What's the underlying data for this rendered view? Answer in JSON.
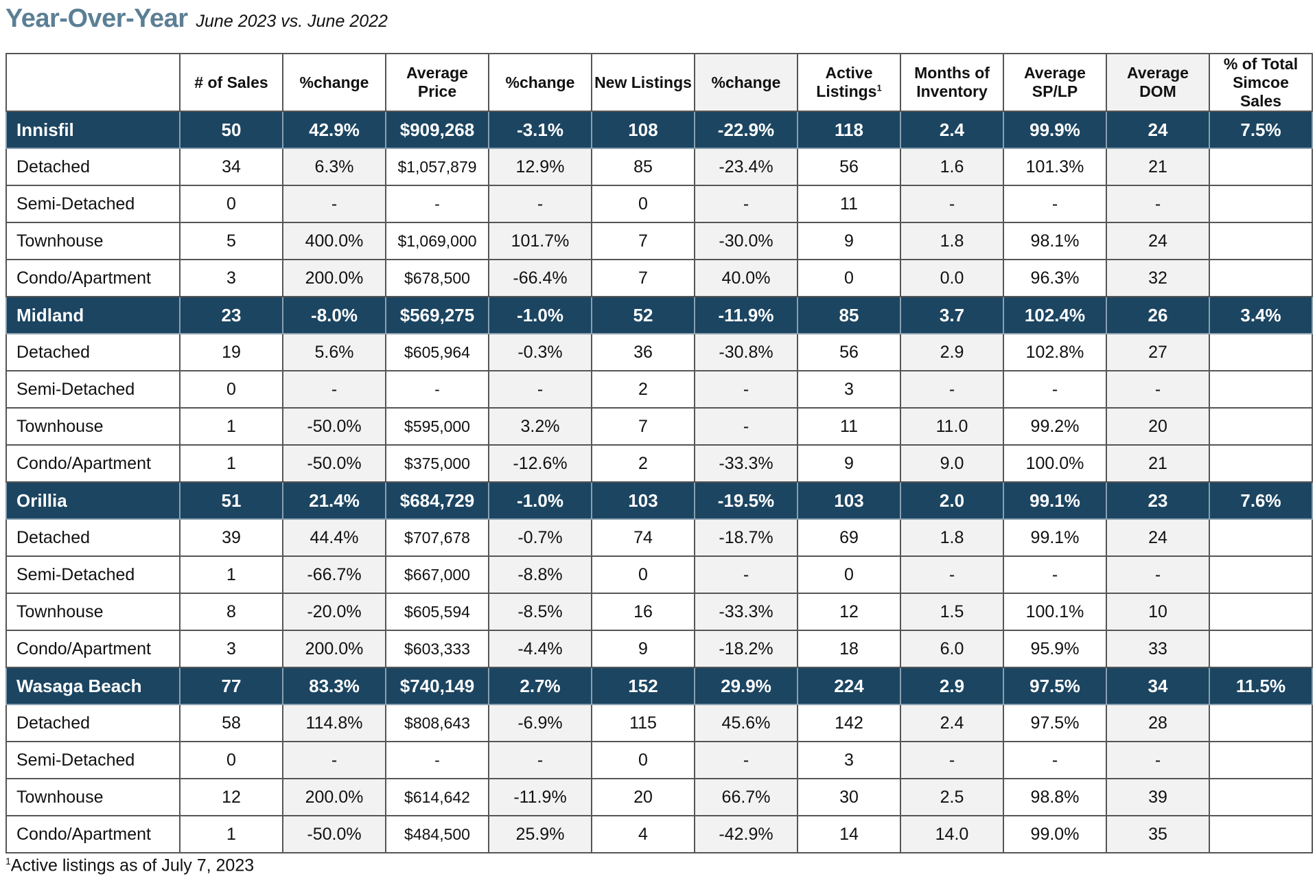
{
  "header": {
    "title": "Year-Over-Year",
    "subtitle": "June 2023 vs. June 2022"
  },
  "table": {
    "columns": [
      "",
      "# of Sales",
      "%change",
      "Average Price",
      "%change",
      "New Listings",
      "%change",
      "Active Listings",
      "Months of Inventory",
      "Average SP/LP",
      "Average DOM",
      "% of Total Simcoe Sales"
    ],
    "active_listings_footnote_marker": "1",
    "rows": [
      {
        "type": "region",
        "cells": [
          "Innisfil",
          "50",
          "42.9%",
          "$909,268",
          "-3.1%",
          "108",
          "-22.9%",
          "118",
          "2.4",
          "99.9%",
          "24",
          "7.5%"
        ]
      },
      {
        "type": "sub",
        "cells": [
          "Detached",
          "34",
          "6.3%",
          "$1,057,879",
          "12.9%",
          "85",
          "-23.4%",
          "56",
          "1.6",
          "101.3%",
          "21",
          ""
        ]
      },
      {
        "type": "sub",
        "cells": [
          "Semi-Detached",
          "0",
          "-",
          "-",
          "-",
          "0",
          "-",
          "11",
          "-",
          "-",
          "-",
          ""
        ]
      },
      {
        "type": "sub",
        "cells": [
          "Townhouse",
          "5",
          "400.0%",
          "$1,069,000",
          "101.7%",
          "7",
          "-30.0%",
          "9",
          "1.8",
          "98.1%",
          "24",
          ""
        ]
      },
      {
        "type": "sub",
        "cells": [
          "Condo/Apartment",
          "3",
          "200.0%",
          "$678,500",
          "-66.4%",
          "7",
          "40.0%",
          "0",
          "0.0",
          "96.3%",
          "32",
          ""
        ]
      },
      {
        "type": "region",
        "cells": [
          "Midland",
          "23",
          "-8.0%",
          "$569,275",
          "-1.0%",
          "52",
          "-11.9%",
          "85",
          "3.7",
          "102.4%",
          "26",
          "3.4%"
        ]
      },
      {
        "type": "sub",
        "cells": [
          "Detached",
          "19",
          "5.6%",
          "$605,964",
          "-0.3%",
          "36",
          "-30.8%",
          "56",
          "2.9",
          "102.8%",
          "27",
          ""
        ]
      },
      {
        "type": "sub",
        "cells": [
          "Semi-Detached",
          "0",
          "-",
          "-",
          "-",
          "2",
          "-",
          "3",
          "-",
          "-",
          "-",
          ""
        ]
      },
      {
        "type": "sub",
        "cells": [
          "Townhouse",
          "1",
          "-50.0%",
          "$595,000",
          "3.2%",
          "7",
          "-",
          "11",
          "11.0",
          "99.2%",
          "20",
          ""
        ]
      },
      {
        "type": "sub",
        "cells": [
          "Condo/Apartment",
          "1",
          "-50.0%",
          "$375,000",
          "-12.6%",
          "2",
          "-33.3%",
          "9",
          "9.0",
          "100.0%",
          "21",
          ""
        ]
      },
      {
        "type": "region",
        "cells": [
          "Orillia",
          "51",
          "21.4%",
          "$684,729",
          "-1.0%",
          "103",
          "-19.5%",
          "103",
          "2.0",
          "99.1%",
          "23",
          "7.6%"
        ]
      },
      {
        "type": "sub",
        "cells": [
          "Detached",
          "39",
          "44.4%",
          "$707,678",
          "-0.7%",
          "74",
          "-18.7%",
          "69",
          "1.8",
          "99.1%",
          "24",
          ""
        ]
      },
      {
        "type": "sub",
        "cells": [
          "Semi-Detached",
          "1",
          "-66.7%",
          "$667,000",
          "-8.8%",
          "0",
          "-",
          "0",
          "-",
          "-",
          "-",
          ""
        ]
      },
      {
        "type": "sub",
        "cells": [
          "Townhouse",
          "8",
          "-20.0%",
          "$605,594",
          "-8.5%",
          "16",
          "-33.3%",
          "12",
          "1.5",
          "100.1%",
          "10",
          ""
        ]
      },
      {
        "type": "sub",
        "cells": [
          "Condo/Apartment",
          "3",
          "200.0%",
          "$603,333",
          "-4.4%",
          "9",
          "-18.2%",
          "18",
          "6.0",
          "95.9%",
          "33",
          ""
        ]
      },
      {
        "type": "region",
        "cells": [
          "Wasaga Beach",
          "77",
          "83.3%",
          "$740,149",
          "2.7%",
          "152",
          "29.9%",
          "224",
          "2.9",
          "97.5%",
          "34",
          "11.5%"
        ]
      },
      {
        "type": "sub",
        "cells": [
          "Detached",
          "58",
          "114.8%",
          "$808,643",
          "-6.9%",
          "115",
          "45.6%",
          "142",
          "2.4",
          "97.5%",
          "28",
          ""
        ]
      },
      {
        "type": "sub",
        "cells": [
          "Semi-Detached",
          "0",
          "-",
          "-",
          "-",
          "0",
          "-",
          "3",
          "-",
          "-",
          "-",
          ""
        ]
      },
      {
        "type": "sub",
        "cells": [
          "Townhouse",
          "12",
          "200.0%",
          "$614,642",
          "-11.9%",
          "20",
          "66.7%",
          "30",
          "2.5",
          "98.8%",
          "39",
          ""
        ]
      },
      {
        "type": "sub",
        "cells": [
          "Condo/Apartment",
          "1",
          "-50.0%",
          "$484,500",
          "25.9%",
          "4",
          "-42.9%",
          "14",
          "14.0",
          "99.0%",
          "35",
          ""
        ]
      }
    ]
  },
  "footnote": {
    "marker": "1",
    "text": "Active listings as of July 7, 2023"
  },
  "colors": {
    "title": "#5b7f95",
    "region_row_bg": "#1c4561",
    "shaded_column_bg": "#f2f2f2",
    "border": "#555555"
  }
}
